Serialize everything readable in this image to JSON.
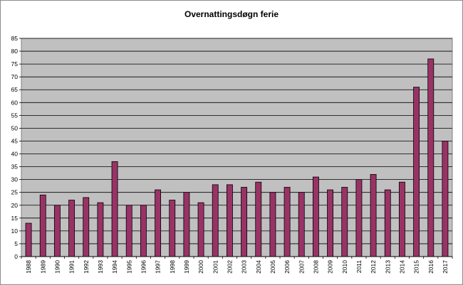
{
  "chart_data": {
    "type": "bar",
    "title": "Overnattingsdøgn ferie",
    "xlabel": "",
    "ylabel": "",
    "categories": [
      "1988",
      "1989",
      "1990",
      "1991",
      "1992",
      "1993",
      "1994",
      "1995",
      "1996",
      "1997",
      "1998",
      "1999",
      "2000",
      "2001",
      "2002",
      "2003",
      "2004",
      "2005",
      "2006",
      "2007",
      "2008",
      "2009",
      "2010",
      "2011",
      "2012",
      "2013",
      "2014",
      "2015",
      "2016",
      "2017"
    ],
    "values": [
      13,
      24,
      20,
      22,
      23,
      21,
      37,
      20,
      20,
      26,
      22,
      25,
      21,
      28,
      28,
      27,
      29,
      25,
      27,
      25,
      31,
      26,
      27,
      30,
      32,
      26,
      29,
      66,
      77,
      45
    ],
    "ylim": [
      0,
      85
    ],
    "yticks": [
      0,
      5,
      10,
      15,
      20,
      25,
      30,
      35,
      40,
      45,
      50,
      55,
      60,
      65,
      70,
      75,
      80,
      85
    ],
    "grid": true,
    "legend": "none",
    "colors": {
      "bar": "#993366",
      "plot_background": "#c0c0c0",
      "gridline": "#000000"
    }
  }
}
